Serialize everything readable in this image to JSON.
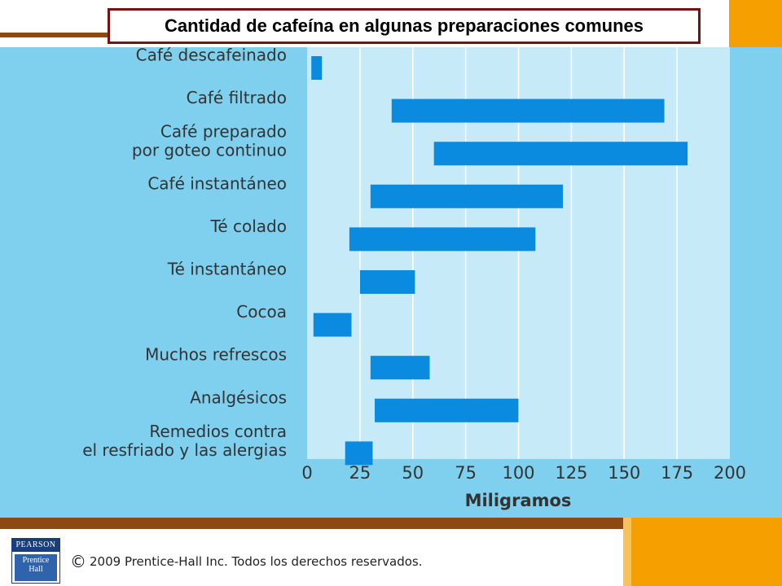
{
  "slide": {
    "title": "Cantidad de cafeína en algunas preparaciones comunes",
    "copyright_symbol": "©",
    "copyright_text": "2009 Prentice-Hall Inc. Todos los derechos reservados.",
    "logo_top": "PEARSON",
    "logo_line1": "Prentice",
    "logo_line2": "Hall"
  },
  "colors": {
    "panel_bg": "#7fd0ef",
    "plot_bg": "#c7eaf8",
    "bar": "#0a8be0",
    "title_border": "#7a1010",
    "brown": "#8c4a12",
    "orange": "#f5a000"
  },
  "chart_data": {
    "type": "bar",
    "orientation": "horizontal-range",
    "categories": [
      [
        "Café descafeinado"
      ],
      [
        "Café filtrado"
      ],
      [
        "Café preparado",
        "por goteo continuo"
      ],
      [
        "Café instantáneo"
      ],
      [
        "Té colado"
      ],
      [
        "Té instantáneo"
      ],
      [
        "Cocoa"
      ],
      [
        "Muchos refrescos"
      ],
      [
        "Analgésicos"
      ],
      [
        "Remedios contra",
        "el resfriado y las alergias"
      ]
    ],
    "ranges": [
      [
        2,
        7
      ],
      [
        40,
        169
      ],
      [
        60,
        180
      ],
      [
        30,
        121
      ],
      [
        20,
        108
      ],
      [
        25,
        51
      ],
      [
        3,
        21
      ],
      [
        30,
        58
      ],
      [
        32,
        100
      ],
      [
        18,
        31
      ]
    ],
    "xlabel": "Miligramos",
    "xlim": [
      0,
      200
    ],
    "xticks": [
      "0",
      "25",
      "50",
      "75",
      "100",
      "125",
      "150",
      "175",
      "200"
    ],
    "grid": "vertical"
  }
}
